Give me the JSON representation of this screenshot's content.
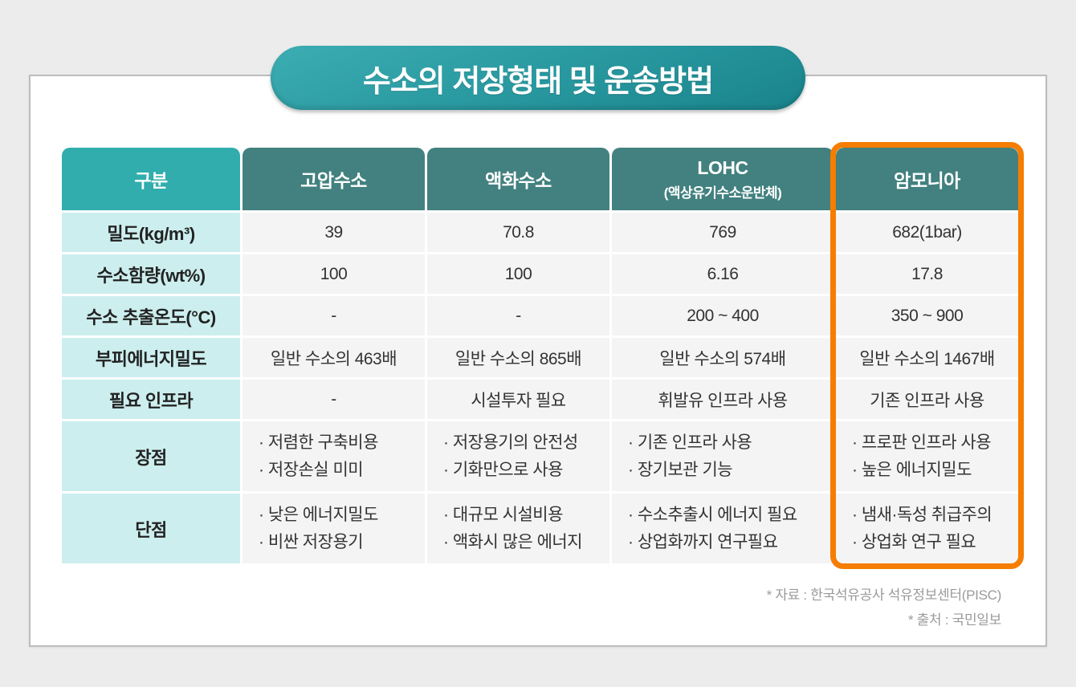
{
  "title": "수소의 저장형태 및 운송방법",
  "colors": {
    "header_primary_teal": "#31adad",
    "header_secondary_teal": "#42817f",
    "label_cell_mint": "#cdeeee",
    "value_cell_gray": "#f4f4f4",
    "title_gradient_start": "#3cadb2",
    "title_gradient_end": "#19838b",
    "highlight_orange": "#f57d00"
  },
  "chart_data": {
    "type": "table",
    "title": "수소의 저장형태 및 운송방법",
    "columns": [
      {
        "label": "구분"
      },
      {
        "label": "고압수소"
      },
      {
        "label": "액화수소"
      },
      {
        "label": "LOHC",
        "sublabel": "(액상유기수소운반체)"
      },
      {
        "label": "암모니아",
        "highlighted": true
      }
    ],
    "highlighted_column": "암모니아",
    "rows": [
      {
        "label": "밀도(kg/m³)",
        "values": [
          "39",
          "70.8",
          "769",
          "682(1bar)"
        ]
      },
      {
        "label": "수소함량(wt%)",
        "values": [
          "100",
          "100",
          "6.16",
          "17.8"
        ]
      },
      {
        "label": "수소 추출온도(°C)",
        "values": [
          "-",
          "-",
          "200 ~ 400",
          "350 ~ 900"
        ]
      },
      {
        "label": "부피에너지밀도",
        "values": [
          "일반 수소의 463배",
          "일반 수소의 865배",
          "일반 수소의 574배",
          "일반 수소의 1467배"
        ]
      },
      {
        "label": "필요 인프라",
        "values": [
          "-",
          "시설투자 필요",
          "휘발유 인프라 사용",
          "기존 인프라 사용"
        ]
      },
      {
        "label": "장점",
        "lines": [
          [
            "· 저렴한 구축비용",
            "· 저장손실 미미"
          ],
          [
            "· 저장용기의 안전성",
            "· 기화만으로 사용"
          ],
          [
            "· 기존 인프라 사용",
            "· 장기보관 기능"
          ],
          [
            "· 프로판 인프라 사용",
            "· 높은 에너지밀도"
          ]
        ]
      },
      {
        "label": "단점",
        "lines": [
          [
            "· 낮은 에너지밀도",
            "· 비싼 저장용기"
          ],
          [
            "· 대규모 시설비용",
            "· 액화시 많은 에너지"
          ],
          [
            "· 수소추출시 에너지 필요",
            "· 상업화까지 연구필요"
          ],
          [
            "· 냄새·독성 취급주의",
            "· 상업화 연구 필요"
          ]
        ]
      }
    ]
  },
  "footer": {
    "source_line1": "* 자료 : 한국석유공사 석유정보센터(PISC)",
    "source_line2": "* 출처 : 국민일보"
  }
}
